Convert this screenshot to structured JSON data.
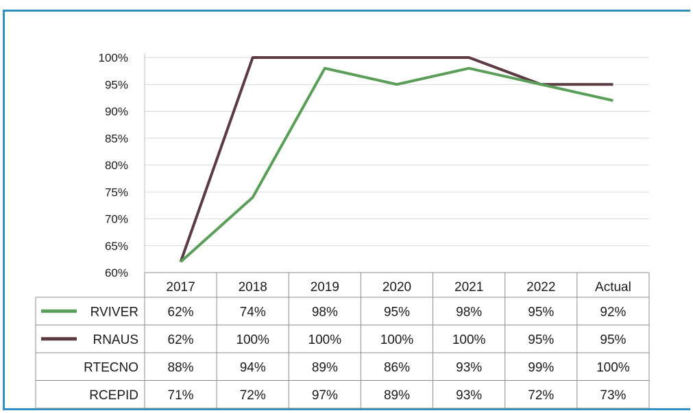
{
  "chart_data": {
    "type": "line",
    "title": "",
    "xlabel": "",
    "ylabel": "",
    "categories": [
      "2017",
      "2018",
      "2019",
      "2020",
      "2021",
      "2022",
      "Actual"
    ],
    "y_ticks": [
      "60%",
      "65%",
      "70%",
      "75%",
      "80%",
      "85%",
      "90%",
      "95%",
      "100%"
    ],
    "ylim": [
      60,
      100
    ],
    "grid": true,
    "legend": "data-table",
    "series": [
      {
        "name": "RVIVER",
        "values": [
          62,
          74,
          98,
          95,
          98,
          95,
          92
        ],
        "labels": [
          "62%",
          "74%",
          "98%",
          "95%",
          "98%",
          "95%",
          "92%"
        ],
        "color": "#5a9e5a",
        "plotted": true
      },
      {
        "name": "RNAUS",
        "values": [
          62,
          100,
          100,
          100,
          100,
          95,
          95
        ],
        "labels": [
          "62%",
          "100%",
          "100%",
          "100%",
          "100%",
          "95%",
          "95%"
        ],
        "color": "#5b3a42",
        "plotted": true
      },
      {
        "name": "RTECNO",
        "values": [
          88,
          94,
          89,
          86,
          93,
          99,
          100
        ],
        "labels": [
          "88%",
          "94%",
          "89%",
          "86%",
          "93%",
          "99%",
          "100%"
        ],
        "color": "",
        "plotted": false
      },
      {
        "name": "RCEPID",
        "values": [
          71,
          72,
          97,
          89,
          93,
          72,
          73
        ],
        "labels": [
          "71%",
          "72%",
          "97%",
          "89%",
          "93%",
          "72%",
          "73%"
        ],
        "color": "",
        "plotted": false
      }
    ]
  }
}
